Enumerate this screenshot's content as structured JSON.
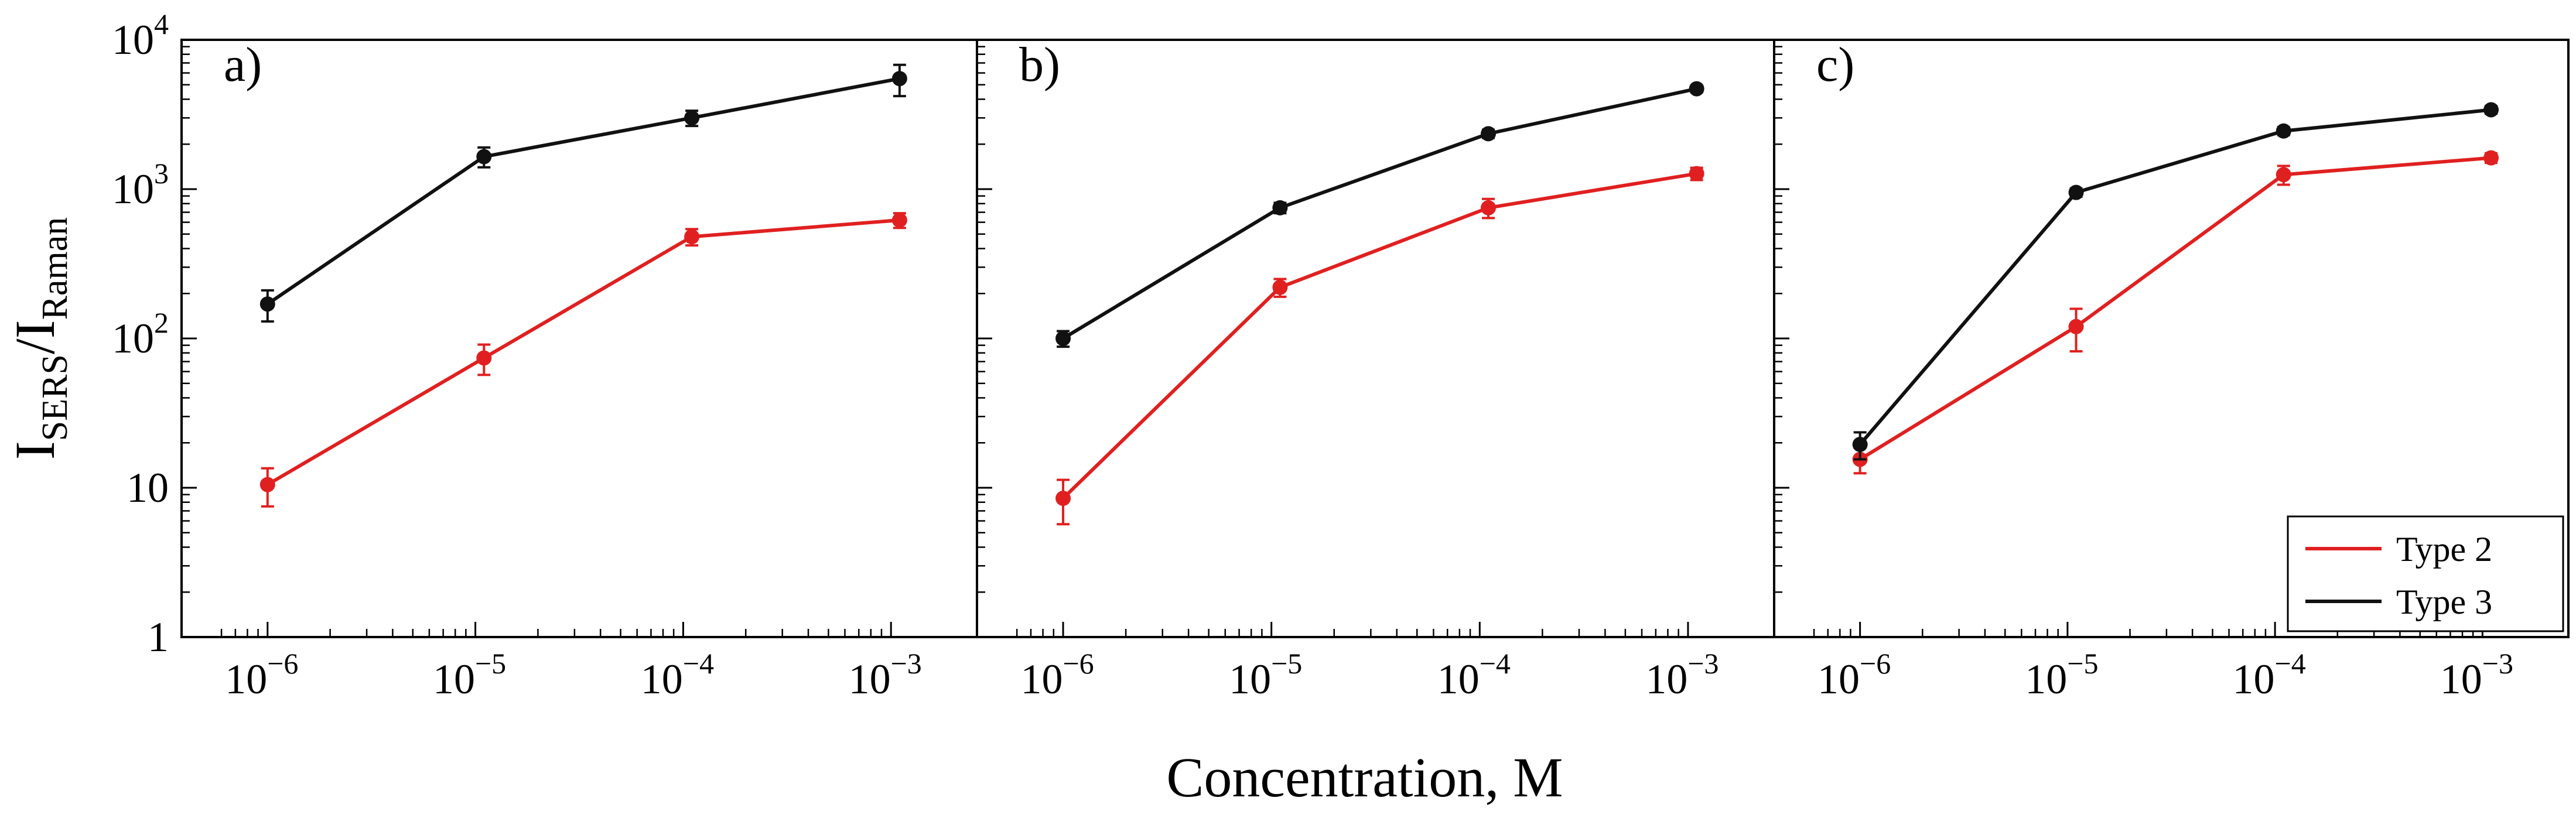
{
  "chart_data": {
    "type": "line",
    "xlabel": "Concentration, M",
    "ylabel": "I_SERS/I_Raman",
    "ylabel_parts": {
      "main_1": "I",
      "sub_1": "SERS",
      "slash": "/",
      "main_2": "I",
      "sub_2": "Raman"
    },
    "x_scale": "log",
    "y_scale": "log",
    "xlim": [
      5e-07,
      0.002
    ],
    "ylim": [
      1,
      10000
    ],
    "x_ticks": [
      {
        "value": 1e-06,
        "base": "10",
        "exp": "−6"
      },
      {
        "value": 1e-05,
        "base": "10",
        "exp": "−5"
      },
      {
        "value": 0.0001,
        "base": "10",
        "exp": "−4"
      },
      {
        "value": 0.001,
        "base": "10",
        "exp": "−3"
      }
    ],
    "y_ticks": [
      {
        "value": 1,
        "base": "1",
        "exp": ""
      },
      {
        "value": 10,
        "base": "10",
        "exp": ""
      },
      {
        "value": 100,
        "base": "10",
        "exp": "2"
      },
      {
        "value": 1000,
        "base": "10",
        "exp": "3"
      },
      {
        "value": 10000,
        "base": "10",
        "exp": "4"
      }
    ],
    "legend": {
      "placement": "bottom-right of panel c",
      "entries": [
        "Type 2",
        "Type 3"
      ]
    },
    "series_colors": {
      "Type 2": "#e02020",
      "Type 3": "#111111"
    },
    "panels": [
      {
        "label": "a)",
        "series": [
          {
            "name": "Type 2",
            "x": [
              1e-06,
              1.1e-05,
              0.00011,
              0.0011
            ],
            "y": [
              10.5,
              74,
              480,
              620
            ],
            "err": [
              3,
              17,
              60,
              70
            ]
          },
          {
            "name": "Type 3",
            "x": [
              1e-06,
              1.1e-05,
              0.00011,
              0.0011
            ],
            "y": [
              170,
              1650,
              3000,
              5500
            ],
            "err": [
              40,
              250,
              350,
              1300
            ]
          }
        ]
      },
      {
        "label": "b)",
        "series": [
          {
            "name": "Type 2",
            "x": [
              1e-06,
              1.1e-05,
              0.00011,
              0.0011
            ],
            "y": [
              8.5,
              220,
              750,
              1270
            ],
            "err": [
              2.8,
              30,
              110,
              120
            ]
          },
          {
            "name": "Type 3",
            "x": [
              1e-06,
              1.1e-05,
              0.00011,
              0.0011
            ],
            "y": [
              100,
              750,
              2350,
              4700
            ],
            "err": [
              12,
              60,
              150,
              250
            ]
          }
        ]
      },
      {
        "label": "c)",
        "series": [
          {
            "name": "Type 2",
            "x": [
              1e-06,
              1.1e-05,
              0.00011,
              0.0011
            ],
            "y": [
              15.5,
              120,
              1250,
              1620
            ],
            "err": [
              3,
              38,
              180,
              120
            ]
          },
          {
            "name": "Type 3",
            "x": [
              1e-06,
              1.1e-05,
              0.00011,
              0.0011
            ],
            "y": [
              19.5,
              950,
              2450,
              3400
            ],
            "err": [
              4,
              60,
              150,
              200
            ]
          }
        ]
      }
    ]
  }
}
